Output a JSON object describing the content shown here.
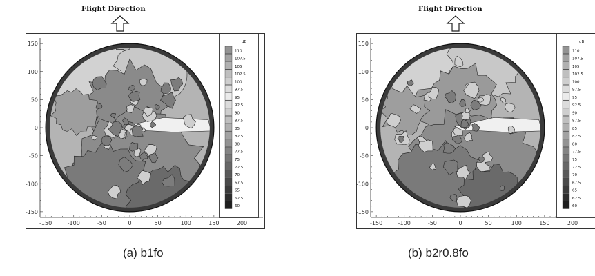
{
  "chart_data": [
    {
      "type": "heatmap",
      "title": "Flight Direction",
      "caption": "(a)  b1fo",
      "xlim": [
        -160,
        220
      ],
      "ylim": [
        -160,
        160
      ],
      "xticks": [
        "-150",
        "-100",
        "-50",
        "0",
        "50",
        "100",
        "150",
        "200"
      ],
      "xtick_values": [
        -150,
        -100,
        -50,
        0,
        50,
        100,
        150,
        200
      ],
      "yticks": [
        "150",
        "100",
        "50",
        "0",
        "-50",
        "-100",
        "-150"
      ],
      "ytick_values": [
        150,
        100,
        50,
        0,
        -50,
        -100,
        -150
      ],
      "legend_title": "dB",
      "legend_levels": [
        "110",
        "107.5",
        "105",
        "102.5",
        "100",
        "97.5",
        "95",
        "92.5",
        "90",
        "87.5",
        "85",
        "82.5",
        "80",
        "77.5",
        "75",
        "72.5",
        "70",
        "67.5",
        "65",
        "62.5",
        "60"
      ],
      "grid": false,
      "legend": "right"
    },
    {
      "type": "heatmap",
      "title": "Flight Direction",
      "caption": "(b)  b2r0.8fo",
      "xlim": [
        -160,
        220
      ],
      "ylim": [
        -160,
        160
      ],
      "xticks": [
        "-150",
        "-100",
        "-50",
        "0",
        "50",
        "100",
        "150",
        "200"
      ],
      "xtick_values": [
        -150,
        -100,
        -50,
        0,
        50,
        100,
        150,
        200
      ],
      "yticks": [
        "150",
        "100",
        "50",
        "0",
        "-50",
        "-100",
        "-150"
      ],
      "ytick_values": [
        150,
        100,
        50,
        0,
        -50,
        -100,
        -150
      ],
      "legend_title": "dB",
      "legend_levels": [
        "110",
        "107.5",
        "105",
        "102.5",
        "100",
        "97.5",
        "95",
        "92.5",
        "90",
        "87.5",
        "85",
        "82.5",
        "80",
        "77.5",
        "75",
        "72.5",
        "70",
        "67.5",
        "65",
        "62.5",
        "60"
      ],
      "grid": false,
      "legend": "right"
    }
  ],
  "colors": {
    "level_110": "#1a1a1a",
    "level_60": "#111111",
    "light": "#e6e6e6",
    "mid": "#a6a6a6",
    "dark": "#6e6e6e"
  }
}
